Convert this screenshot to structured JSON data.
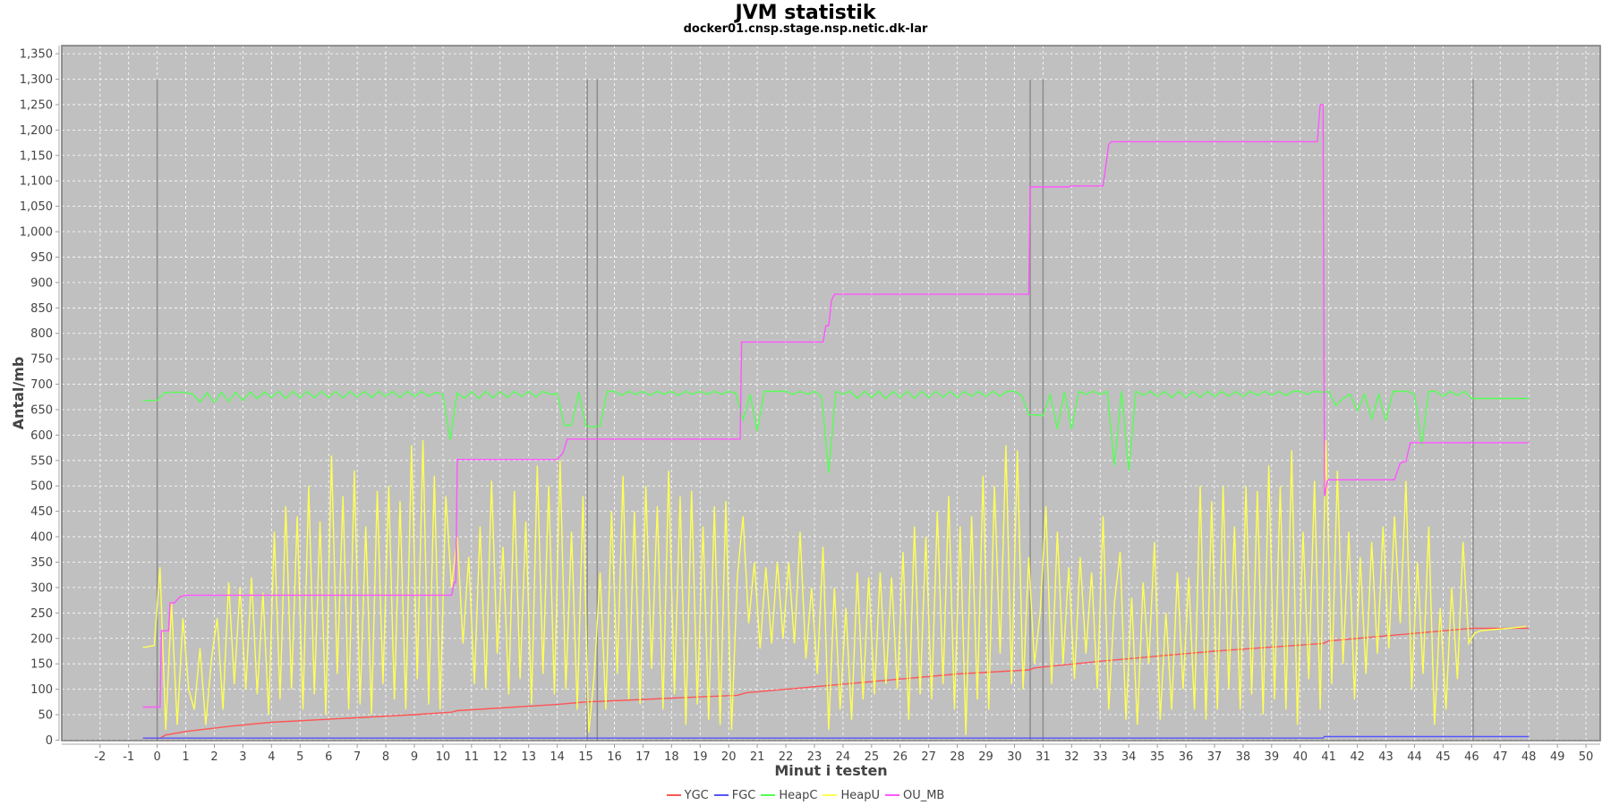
{
  "chart_data": {
    "type": "line",
    "title": "JVM statistik",
    "subtitle": "docker01.cnsp.stage.nsp.netic.dk-lar",
    "xlabel": "Minut i testen",
    "ylabel": "Antal/mb",
    "xlim": [
      -3.34,
      50.5
    ],
    "ylim": [
      -1,
      1366
    ],
    "xticks": [
      -2,
      -1,
      0,
      1,
      2,
      3,
      4,
      5,
      6,
      7,
      8,
      9,
      10,
      11,
      12,
      13,
      14,
      15,
      16,
      17,
      18,
      19,
      20,
      21,
      22,
      23,
      24,
      25,
      26,
      27,
      28,
      29,
      30,
      31,
      32,
      33,
      34,
      35,
      36,
      37,
      38,
      39,
      40,
      41,
      42,
      43,
      44,
      45,
      46,
      47,
      48,
      49,
      50
    ],
    "yticks": [
      0,
      50,
      100,
      150,
      200,
      250,
      300,
      350,
      400,
      450,
      500,
      550,
      600,
      650,
      700,
      750,
      800,
      850,
      900,
      950,
      1000,
      1050,
      1100,
      1150,
      1200,
      1250,
      1300,
      1350
    ],
    "grid": true,
    "background": "#c0c0c0",
    "legend_position": "bottom",
    "markers": {
      "x": [
        0,
        15.05,
        15.4,
        30.55,
        31,
        46.05
      ],
      "ymax": 1300,
      "color": "#8c8c8c"
    },
    "series": [
      {
        "name": "YGC",
        "color": "#ff5555",
        "points": [
          [
            -0.5,
            4
          ],
          [
            0.1,
            4
          ],
          [
            0.3,
            10
          ],
          [
            1,
            17
          ],
          [
            2.5,
            27
          ],
          [
            4,
            35
          ],
          [
            9,
            50
          ],
          [
            10.3,
            55
          ],
          [
            10.5,
            58
          ],
          [
            14,
            70
          ],
          [
            15,
            75
          ],
          [
            17,
            80
          ],
          [
            19,
            85
          ],
          [
            20.3,
            88
          ],
          [
            20.6,
            93
          ],
          [
            22,
            100
          ],
          [
            24,
            110
          ],
          [
            26,
            120
          ],
          [
            28,
            130
          ],
          [
            30.5,
            138
          ],
          [
            30.7,
            142
          ],
          [
            33,
            155
          ],
          [
            35,
            165
          ],
          [
            37,
            175
          ],
          [
            39,
            183
          ],
          [
            40.8,
            190
          ],
          [
            41,
            195
          ],
          [
            43,
            205
          ],
          [
            46,
            220
          ],
          [
            48,
            220
          ]
        ]
      },
      {
        "name": "FGC",
        "color": "#5555ff",
        "points": [
          [
            -0.5,
            4
          ],
          [
            40.8,
            4
          ],
          [
            40.85,
            7
          ],
          [
            48,
            7
          ]
        ]
      },
      {
        "name": "HeapC",
        "color": "#55ff55",
        "x0": -0.5,
        "step": 0.25,
        "values": [
          668,
          668,
          668,
          683,
          684,
          684,
          684,
          680,
          665,
          683,
          664,
          684,
          666,
          684,
          668,
          685,
          672,
          685,
          674,
          686,
          672,
          686,
          674,
          686,
          673,
          686,
          674,
          686,
          673,
          686,
          675,
          686,
          674,
          686,
          676,
          686,
          674,
          686,
          676,
          686,
          676,
          684,
          680,
          590,
          683,
          672,
          686,
          672,
          686,
          673,
          686,
          674,
          686,
          676,
          686,
          675,
          686,
          680,
          682,
          618,
          620,
          684,
          618,
          616,
          618,
          686,
          686,
          678,
          686,
          680,
          686,
          678,
          686,
          680,
          686,
          678,
          686,
          680,
          686,
          680,
          686,
          680,
          686,
          682,
          630,
          680,
          608,
          686,
          686,
          686,
          686,
          680,
          686,
          680,
          686,
          676,
          525,
          686,
          680,
          686,
          672,
          686,
          674,
          686,
          672,
          686,
          674,
          686,
          672,
          686,
          674,
          686,
          674,
          686,
          674,
          686,
          676,
          686,
          676,
          686,
          676,
          686,
          686,
          678,
          640,
          640,
          638,
          680,
          612,
          685,
          612,
          686,
          680,
          686,
          680,
          686,
          540,
          686,
          530,
          686,
          678,
          686,
          676,
          686,
          674,
          686,
          674,
          686,
          674,
          686,
          676,
          686,
          676,
          686,
          676,
          686,
          678,
          686,
          678,
          686,
          678,
          686,
          686,
          680,
          686,
          684,
          686,
          658,
          672,
          680,
          648,
          680,
          632,
          680,
          628,
          686,
          686,
          686,
          680,
          580,
          686,
          686,
          676,
          686,
          678,
          686,
          672,
          672,
          672,
          672,
          672,
          672,
          672,
          672,
          672
        ]
      },
      {
        "name": "HeapU",
        "color": "#ffff55",
        "x0": -0.5,
        "step": 0.2,
        "values": [
          182,
          184,
          186,
          340,
          20,
          270,
          30,
          240,
          100,
          60,
          180,
          30,
          160,
          240,
          60,
          310,
          110,
          300,
          100,
          320,
          90,
          290,
          50,
          410,
          80,
          460,
          100,
          440,
          60,
          500,
          90,
          430,
          50,
          560,
          130,
          480,
          60,
          530,
          70,
          420,
          50,
          490,
          110,
          500,
          80,
          470,
          60,
          580,
          120,
          590,
          70,
          520,
          60,
          480,
          300,
          400,
          190,
          360,
          110,
          420,
          100,
          510,
          170,
          380,
          90,
          490,
          120,
          430,
          70,
          540,
          130,
          500,
          90,
          550,
          100,
          410,
          60,
          480,
          15,
          130,
          330,
          60,
          450,
          130,
          520,
          80,
          450,
          70,
          500,
          140,
          460,
          60,
          530,
          90,
          480,
          30,
          490,
          70,
          420,
          40,
          460,
          30,
          470,
          20,
          320,
          440,
          230,
          350,
          180,
          340,
          190,
          350,
          200,
          350,
          190,
          410,
          160,
          300,
          130,
          380,
          20,
          300,
          60,
          260,
          40,
          330,
          80,
          320,
          90,
          330,
          110,
          320,
          100,
          370,
          40,
          420,
          90,
          400,
          80,
          450,
          110,
          480,
          60,
          420,
          10,
          440,
          80,
          520,
          60,
          500,
          170,
          580,
          110,
          570,
          100,
          360,
          150,
          250,
          460,
          110,
          410,
          150,
          340,
          120,
          360,
          170,
          330,
          100,
          440,
          60,
          270,
          370,
          40,
          280,
          30,
          310,
          150,
          390,
          40,
          250,
          60,
          330,
          100,
          320,
          60,
          500,
          40,
          470,
          60,
          500,
          100,
          420,
          60,
          500,
          90,
          490,
          50,
          540,
          80,
          500,
          60,
          570,
          30,
          410,
          120,
          510,
          60,
          590,
          110,
          530,
          150,
          410,
          80,
          360,
          130,
          390,
          170,
          420,
          180,
          440,
          230,
          510,
          100,
          350,
          130,
          420,
          30,
          260,
          60,
          300,
          120,
          390,
          190,
          210,
          215,
          216,
          217,
          218,
          219,
          220,
          221,
          222,
          224
        ]
      },
      {
        "name": "OU_MB",
        "color": "#ff55ff",
        "points": [
          [
            -0.5,
            65
          ],
          [
            0.1,
            65
          ],
          [
            0.15,
            215
          ],
          [
            0.4,
            215
          ],
          [
            0.45,
            270
          ],
          [
            0.6,
            270
          ],
          [
            0.8,
            282
          ],
          [
            1.0,
            285
          ],
          [
            10.3,
            285
          ],
          [
            10.4,
            310
          ],
          [
            10.45,
            310
          ],
          [
            10.5,
            552
          ],
          [
            14.0,
            552
          ],
          [
            14.2,
            565
          ],
          [
            14.35,
            592
          ],
          [
            20.4,
            592
          ],
          [
            20.45,
            783
          ],
          [
            23.3,
            783
          ],
          [
            23.4,
            815
          ],
          [
            23.5,
            815
          ],
          [
            23.6,
            865
          ],
          [
            23.7,
            877
          ],
          [
            30.5,
            877
          ],
          [
            30.55,
            1088
          ],
          [
            31.9,
            1088
          ],
          [
            31.95,
            1090
          ],
          [
            33.1,
            1090
          ],
          [
            33.3,
            1172
          ],
          [
            33.4,
            1177
          ],
          [
            40.6,
            1177
          ],
          [
            40.7,
            1250
          ],
          [
            40.8,
            1250
          ],
          [
            40.85,
            480
          ],
          [
            40.95,
            510
          ],
          [
            41.0,
            512
          ],
          [
            43.3,
            512
          ],
          [
            43.5,
            545
          ],
          [
            43.7,
            548
          ],
          [
            43.85,
            585
          ],
          [
            48,
            585
          ]
        ]
      }
    ]
  }
}
